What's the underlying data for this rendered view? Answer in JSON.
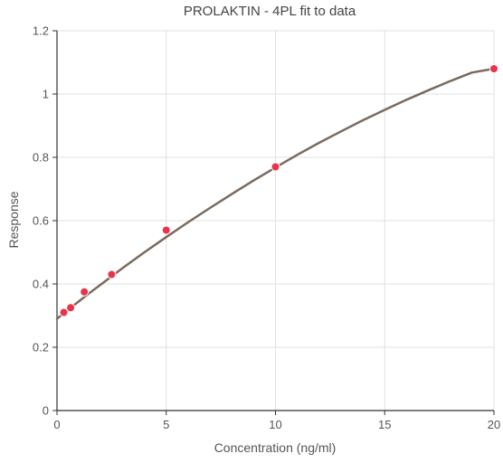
{
  "chart_data": {
    "type": "scatter",
    "title": "PROLAKTIN - 4PL fit to data",
    "xlabel": "Concentration (ng/ml)",
    "ylabel": "Response",
    "xlim": [
      0,
      20
    ],
    "ylim": [
      0,
      1.2
    ],
    "x_ticks": [
      0,
      5,
      10,
      15,
      20
    ],
    "y_ticks": [
      0,
      0.2,
      0.4,
      0.6,
      0.8,
      1,
      1.2
    ],
    "x_tick_labels": [
      "0",
      "5",
      "10",
      "15",
      "20"
    ],
    "y_tick_labels": [
      "0",
      "0.2",
      "0.4",
      "0.6",
      "0.8",
      "1",
      "1.2"
    ],
    "grid": true,
    "series": [
      {
        "type": "scatter",
        "color": "#e8334a",
        "points": [
          {
            "x": 0.3125,
            "y": 0.31
          },
          {
            "x": 0.625,
            "y": 0.325
          },
          {
            "x": 1.25,
            "y": 0.375
          },
          {
            "x": 2.5,
            "y": 0.43
          },
          {
            "x": 5,
            "y": 0.57
          },
          {
            "x": 10,
            "y": 0.77
          },
          {
            "x": 20,
            "y": 1.08
          }
        ]
      },
      {
        "type": "line",
        "color": "#7a6a5e",
        "points": [
          {
            "x": 0,
            "y": 0.29
          },
          {
            "x": 0.5,
            "y": 0.318
          },
          {
            "x": 1,
            "y": 0.345
          },
          {
            "x": 1.5,
            "y": 0.372
          },
          {
            "x": 2,
            "y": 0.398
          },
          {
            "x": 2.5,
            "y": 0.424
          },
          {
            "x": 3,
            "y": 0.45
          },
          {
            "x": 4,
            "y": 0.5
          },
          {
            "x": 5,
            "y": 0.548
          },
          {
            "x": 6,
            "y": 0.595
          },
          {
            "x": 7,
            "y": 0.64
          },
          {
            "x": 8,
            "y": 0.684
          },
          {
            "x": 9,
            "y": 0.727
          },
          {
            "x": 10,
            "y": 0.768
          },
          {
            "x": 11,
            "y": 0.808
          },
          {
            "x": 12,
            "y": 0.846
          },
          {
            "x": 13,
            "y": 0.882
          },
          {
            "x": 14,
            "y": 0.917
          },
          {
            "x": 15,
            "y": 0.95
          },
          {
            "x": 16,
            "y": 0.982
          },
          {
            "x": 17,
            "y": 1.012
          },
          {
            "x": 18,
            "y": 1.041
          },
          {
            "x": 19,
            "y": 1.068
          },
          {
            "x": 20,
            "y": 1.08
          }
        ]
      }
    ]
  },
  "colors": {
    "grid": "#e0e0e0",
    "axis": "#333333"
  }
}
